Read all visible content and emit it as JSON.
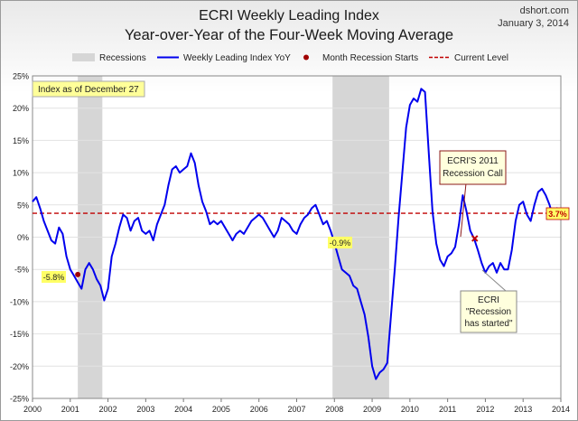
{
  "header": {
    "title": "ECRI Weekly Leading Index",
    "subtitle": "Year-over-Year of the Four-Week Moving Average",
    "source": "dshort.com",
    "date": "January 3, 2014"
  },
  "legend": {
    "recessions": "Recessions",
    "wli": "Weekly Leading Index YoY",
    "month_start": "Month Recession Starts",
    "current": "Current Level"
  },
  "annotations": {
    "index_box": "Index as of December 27",
    "call_line1": "ECRI'S 2011",
    "call_line2": "Recession Call",
    "started_line1": "ECRI",
    "started_line2": "\"Recession",
    "started_line3": "has started\"",
    "label_2001": "-5.8%",
    "label_2008": "-0.9%",
    "current_label": "3.7%"
  },
  "colors": {
    "line": "#0000ee",
    "recession": "#d6d6d6",
    "current": "#c00000",
    "marker": "#a00000",
    "callout_fill": "#ffffdd",
    "callout_border": "#8b1a1a",
    "label_fill": "#ffff66"
  },
  "chart_data": {
    "type": "line",
    "title": "ECRI Weekly Leading Index",
    "subtitle": "Year-over-Year of the Four-Week Moving Average",
    "xlim": [
      2000,
      2014
    ],
    "ylim": [
      -25,
      25
    ],
    "x_ticks": [
      "2000",
      "2001",
      "2002",
      "2003",
      "2004",
      "2005",
      "2006",
      "2007",
      "2008",
      "2009",
      "2010",
      "2011",
      "2012",
      "2013",
      "2014"
    ],
    "y_ticks": [
      "25%",
      "20%",
      "15%",
      "10%",
      "5%",
      "0%",
      "-5%",
      "-10%",
      "-15%",
      "-20%",
      "-25%"
    ],
    "grid": "horizontal",
    "legend_position": "top",
    "current_level": 3.7,
    "recessions": [
      [
        2001.2,
        2001.85
      ],
      [
        2007.95,
        2009.45
      ]
    ],
    "recession_markers": [
      {
        "x": 2001.2,
        "y": -5.8,
        "label": "-5.8%"
      },
      {
        "x": 2007.95,
        "y": -0.9,
        "label": "-0.9%"
      }
    ],
    "call_marker": {
      "x": 2011.72,
      "y": -0.2
    },
    "series": [
      {
        "name": "Weekly Leading Index YoY",
        "x": [
          2000.0,
          2000.1,
          2000.2,
          2000.3,
          2000.4,
          2000.5,
          2000.6,
          2000.7,
          2000.8,
          2000.9,
          2001.0,
          2001.1,
          2001.2,
          2001.3,
          2001.4,
          2001.5,
          2001.6,
          2001.7,
          2001.8,
          2001.9,
          2002.0,
          2002.1,
          2002.2,
          2002.3,
          2002.4,
          2002.5,
          2002.6,
          2002.7,
          2002.8,
          2002.9,
          2003.0,
          2003.1,
          2003.2,
          2003.3,
          2003.4,
          2003.5,
          2003.6,
          2003.7,
          2003.8,
          2003.9,
          2004.0,
          2004.1,
          2004.2,
          2004.3,
          2004.4,
          2004.5,
          2004.6,
          2004.7,
          2004.8,
          2004.9,
          2005.0,
          2005.1,
          2005.2,
          2005.3,
          2005.4,
          2005.5,
          2005.6,
          2005.7,
          2005.8,
          2005.9,
          2006.0,
          2006.1,
          2006.2,
          2006.3,
          2006.4,
          2006.5,
          2006.6,
          2006.7,
          2006.8,
          2006.9,
          2007.0,
          2007.1,
          2007.2,
          2007.3,
          2007.4,
          2007.5,
          2007.6,
          2007.7,
          2007.8,
          2007.9,
          2008.0,
          2008.1,
          2008.2,
          2008.3,
          2008.4,
          2008.5,
          2008.6,
          2008.7,
          2008.8,
          2008.9,
          2009.0,
          2009.1,
          2009.2,
          2009.3,
          2009.4,
          2009.5,
          2009.6,
          2009.7,
          2009.8,
          2009.9,
          2010.0,
          2010.1,
          2010.2,
          2010.3,
          2010.4,
          2010.5,
          2010.6,
          2010.7,
          2010.8,
          2010.9,
          2011.0,
          2011.1,
          2011.2,
          2011.3,
          2011.4,
          2011.5,
          2011.6,
          2011.7,
          2011.8,
          2011.9,
          2012.0,
          2012.1,
          2012.2,
          2012.3,
          2012.4,
          2012.5,
          2012.6,
          2012.7,
          2012.8,
          2012.9,
          2013.0,
          2013.1,
          2013.2,
          2013.3,
          2013.4,
          2013.5,
          2013.6,
          2013.7,
          2013.8,
          2013.9,
          2014.0
        ],
        "values": [
          5.5,
          6.2,
          4.5,
          2.5,
          1.0,
          -0.5,
          -1.0,
          1.5,
          0.5,
          -3.0,
          -5.0,
          -6.0,
          -7.0,
          -8.0,
          -5.0,
          -4.0,
          -5.0,
          -6.5,
          -7.5,
          -9.8,
          -8.0,
          -3.0,
          -1.0,
          1.5,
          3.5,
          3.0,
          1.0,
          2.5,
          3.0,
          1.0,
          0.5,
          1.0,
          -0.5,
          2.0,
          3.5,
          5.0,
          8.0,
          10.5,
          11.0,
          10.0,
          10.5,
          11.0,
          13.0,
          11.5,
          8.0,
          5.5,
          4.0,
          2.0,
          2.5,
          2.0,
          2.5,
          1.5,
          0.5,
          -0.5,
          0.5,
          1.0,
          0.5,
          1.5,
          2.5,
          3.0,
          3.5,
          3.0,
          2.0,
          1.0,
          0.0,
          1.0,
          3.0,
          2.5,
          2.0,
          1.0,
          0.5,
          2.0,
          3.0,
          3.5,
          4.5,
          5.0,
          3.5,
          2.0,
          2.5,
          1.0,
          -0.9,
          -3.0,
          -5.0,
          -5.5,
          -6.0,
          -7.5,
          -8.0,
          -10.0,
          -12.0,
          -15.5,
          -20.0,
          -22.0,
          -21.0,
          -20.5,
          -19.5,
          -12.0,
          -5.0,
          3.0,
          10.0,
          17.0,
          20.5,
          21.5,
          21.0,
          23.0,
          22.5,
          13.0,
          4.0,
          -1.0,
          -3.5,
          -4.5,
          -3.0,
          -2.5,
          -1.5,
          2.0,
          6.5,
          4.0,
          1.0,
          -0.2,
          -2.0,
          -4.0,
          -5.5,
          -4.5,
          -4.0,
          -5.5,
          -4.0,
          -5.0,
          -5.0,
          -2.0,
          2.5,
          5.0,
          5.5,
          3.5,
          2.5,
          5.0,
          7.0,
          7.5,
          6.5,
          5.0,
          3.0,
          4.5,
          3.7
        ]
      }
    ]
  }
}
